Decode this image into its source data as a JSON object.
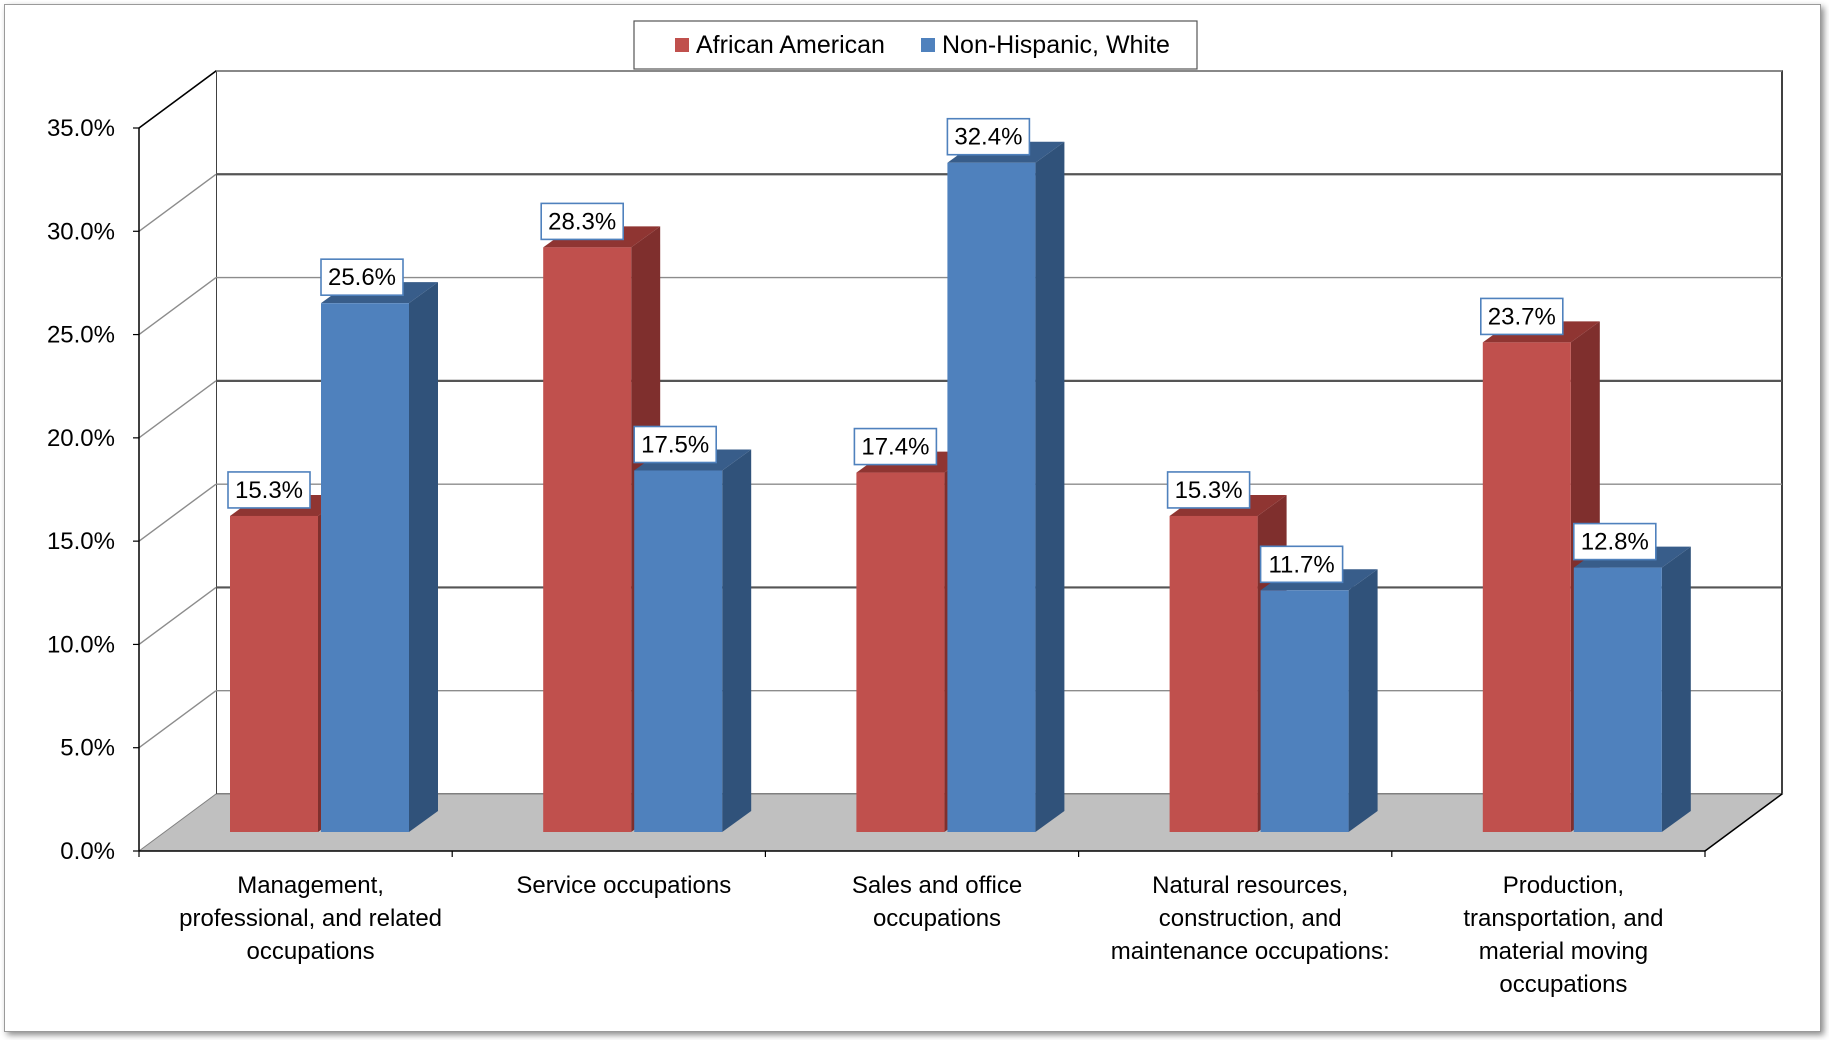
{
  "colors": {
    "african_american": "#c0504d",
    "african_american_side": "#7f2f2d",
    "african_american_top": "#8f3532",
    "white": "#4f81bd",
    "white_side": "#30527a",
    "white_top": "#385d8a",
    "floor": "#c0c0c0",
    "gridline": "#8c8c8c",
    "label_border": "#4f81bd"
  },
  "chart_data": {
    "type": "bar",
    "variant": "3d-clustered-column",
    "categories": [
      [
        "Management,",
        "professional, and related",
        "occupations"
      ],
      [
        "Service occupations"
      ],
      [
        "Sales and office",
        "occupations"
      ],
      [
        "Natural resources,",
        "construction, and",
        "maintenance occupations:"
      ],
      [
        "Production,",
        "transportation, and",
        "material moving",
        "occupations"
      ]
    ],
    "series": [
      {
        "name": "African American",
        "values": [
          15.3,
          28.3,
          17.4,
          15.3,
          23.7
        ],
        "labels": [
          "15.3%",
          "28.3%",
          "17.4%",
          "15.3%",
          "23.7%"
        ]
      },
      {
        "name": "Non-Hispanic, White",
        "values": [
          25.6,
          17.5,
          32.4,
          11.7,
          12.8
        ],
        "labels": [
          "25.6%",
          "17.5%",
          "32.4%",
          "11.7%",
          "12.8%"
        ]
      }
    ],
    "ylim": [
      0,
      35
    ],
    "yticks": [
      0,
      5,
      10,
      15,
      20,
      25,
      30,
      35
    ],
    "ytick_labels": [
      "0.0%",
      "5.0%",
      "10.0%",
      "15.0%",
      "20.0%",
      "25.0%",
      "30.0%",
      "35.0%"
    ],
    "title": "",
    "xlabel": "",
    "ylabel": "",
    "grid": true,
    "legend_position": "top-center",
    "data_labels": true
  }
}
